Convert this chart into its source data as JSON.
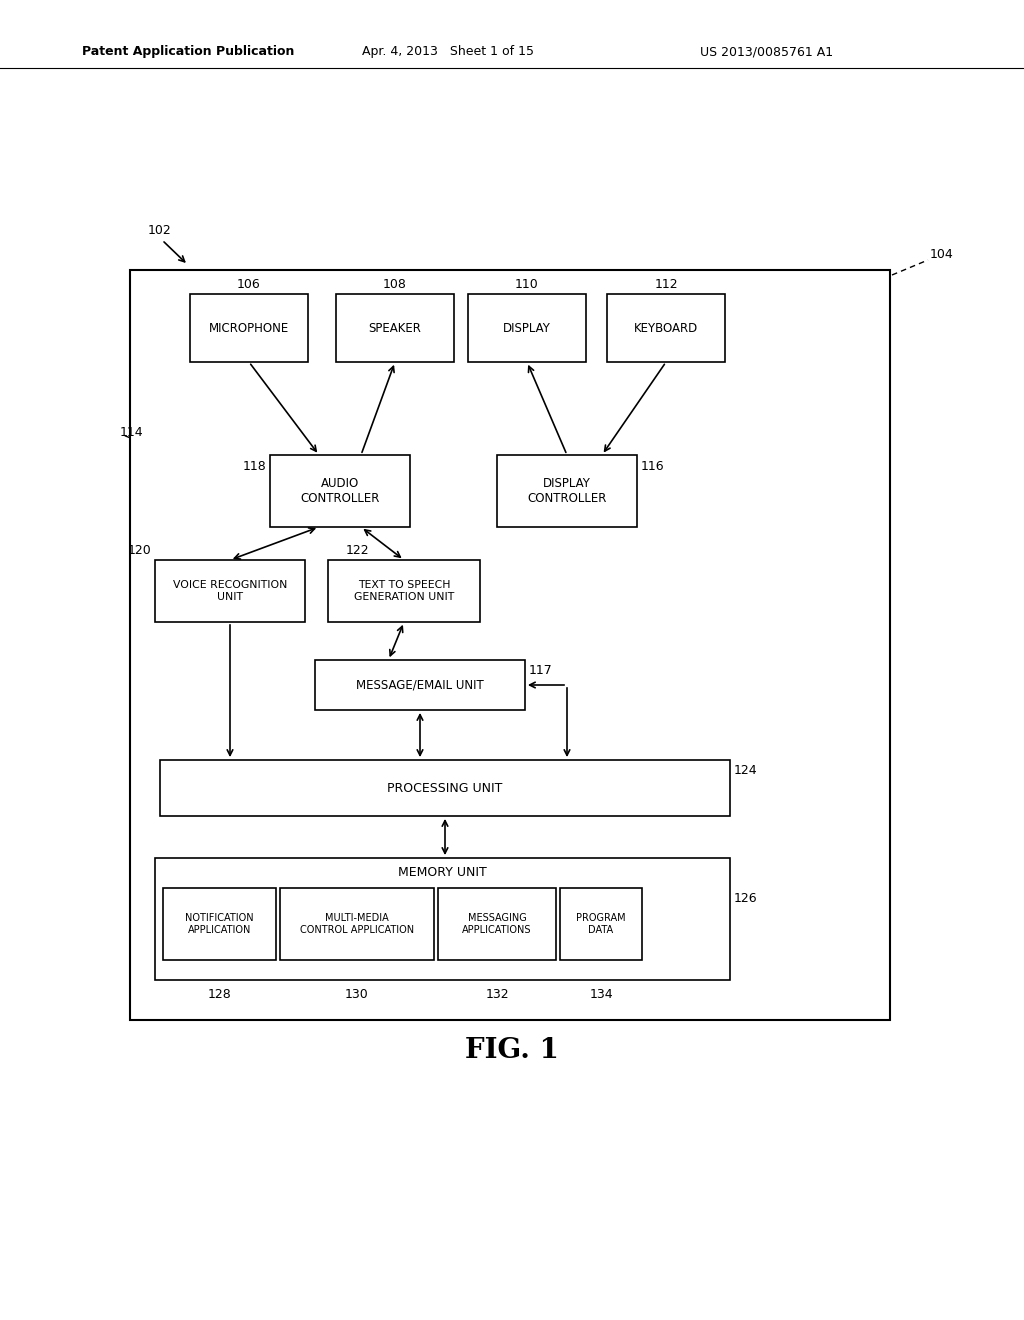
{
  "title": "FIG. 1",
  "header_left": "Patent Application Publication",
  "header_mid": "Apr. 4, 2013   Sheet 1 of 15",
  "header_right": "US 2013/0085761 A1",
  "bg_color": "#ffffff",
  "label_102": "102",
  "label_104": "104",
  "label_106": "106",
  "label_108": "108",
  "label_110": "110",
  "label_112": "112",
  "label_114": "114",
  "label_116": "116",
  "label_117": "117",
  "label_118": "118",
  "label_120": "120",
  "label_122": "122",
  "label_124": "124",
  "label_126": "126",
  "label_128": "128",
  "label_130": "130",
  "label_132": "132",
  "label_134": "134",
  "box_microphone": "MICROPHONE",
  "box_speaker": "SPEAKER",
  "box_display": "DISPLAY",
  "box_keyboard": "KEYBOARD",
  "box_audio_controller": "AUDIO\nCONTROLLER",
  "box_display_controller": "DISPLAY\nCONTROLLER",
  "box_voice_recognition": "VOICE RECOGNITION\nUNIT",
  "box_text_to_speech": "TEXT TO SPEECH\nGENERATION UNIT",
  "box_message_email": "MESSAGE/EMAIL UNIT",
  "box_processing_unit": "PROCESSING UNIT",
  "box_memory_unit": "MEMORY UNIT",
  "box_notification_app": "NOTIFICATION\nAPPLICATION",
  "box_multimedia_control": "MULTI-MEDIA\nCONTROL APPLICATION",
  "box_messaging_apps": "MESSAGING\nAPPLICATIONS",
  "box_program_data": "PROGRAM\nDATA"
}
